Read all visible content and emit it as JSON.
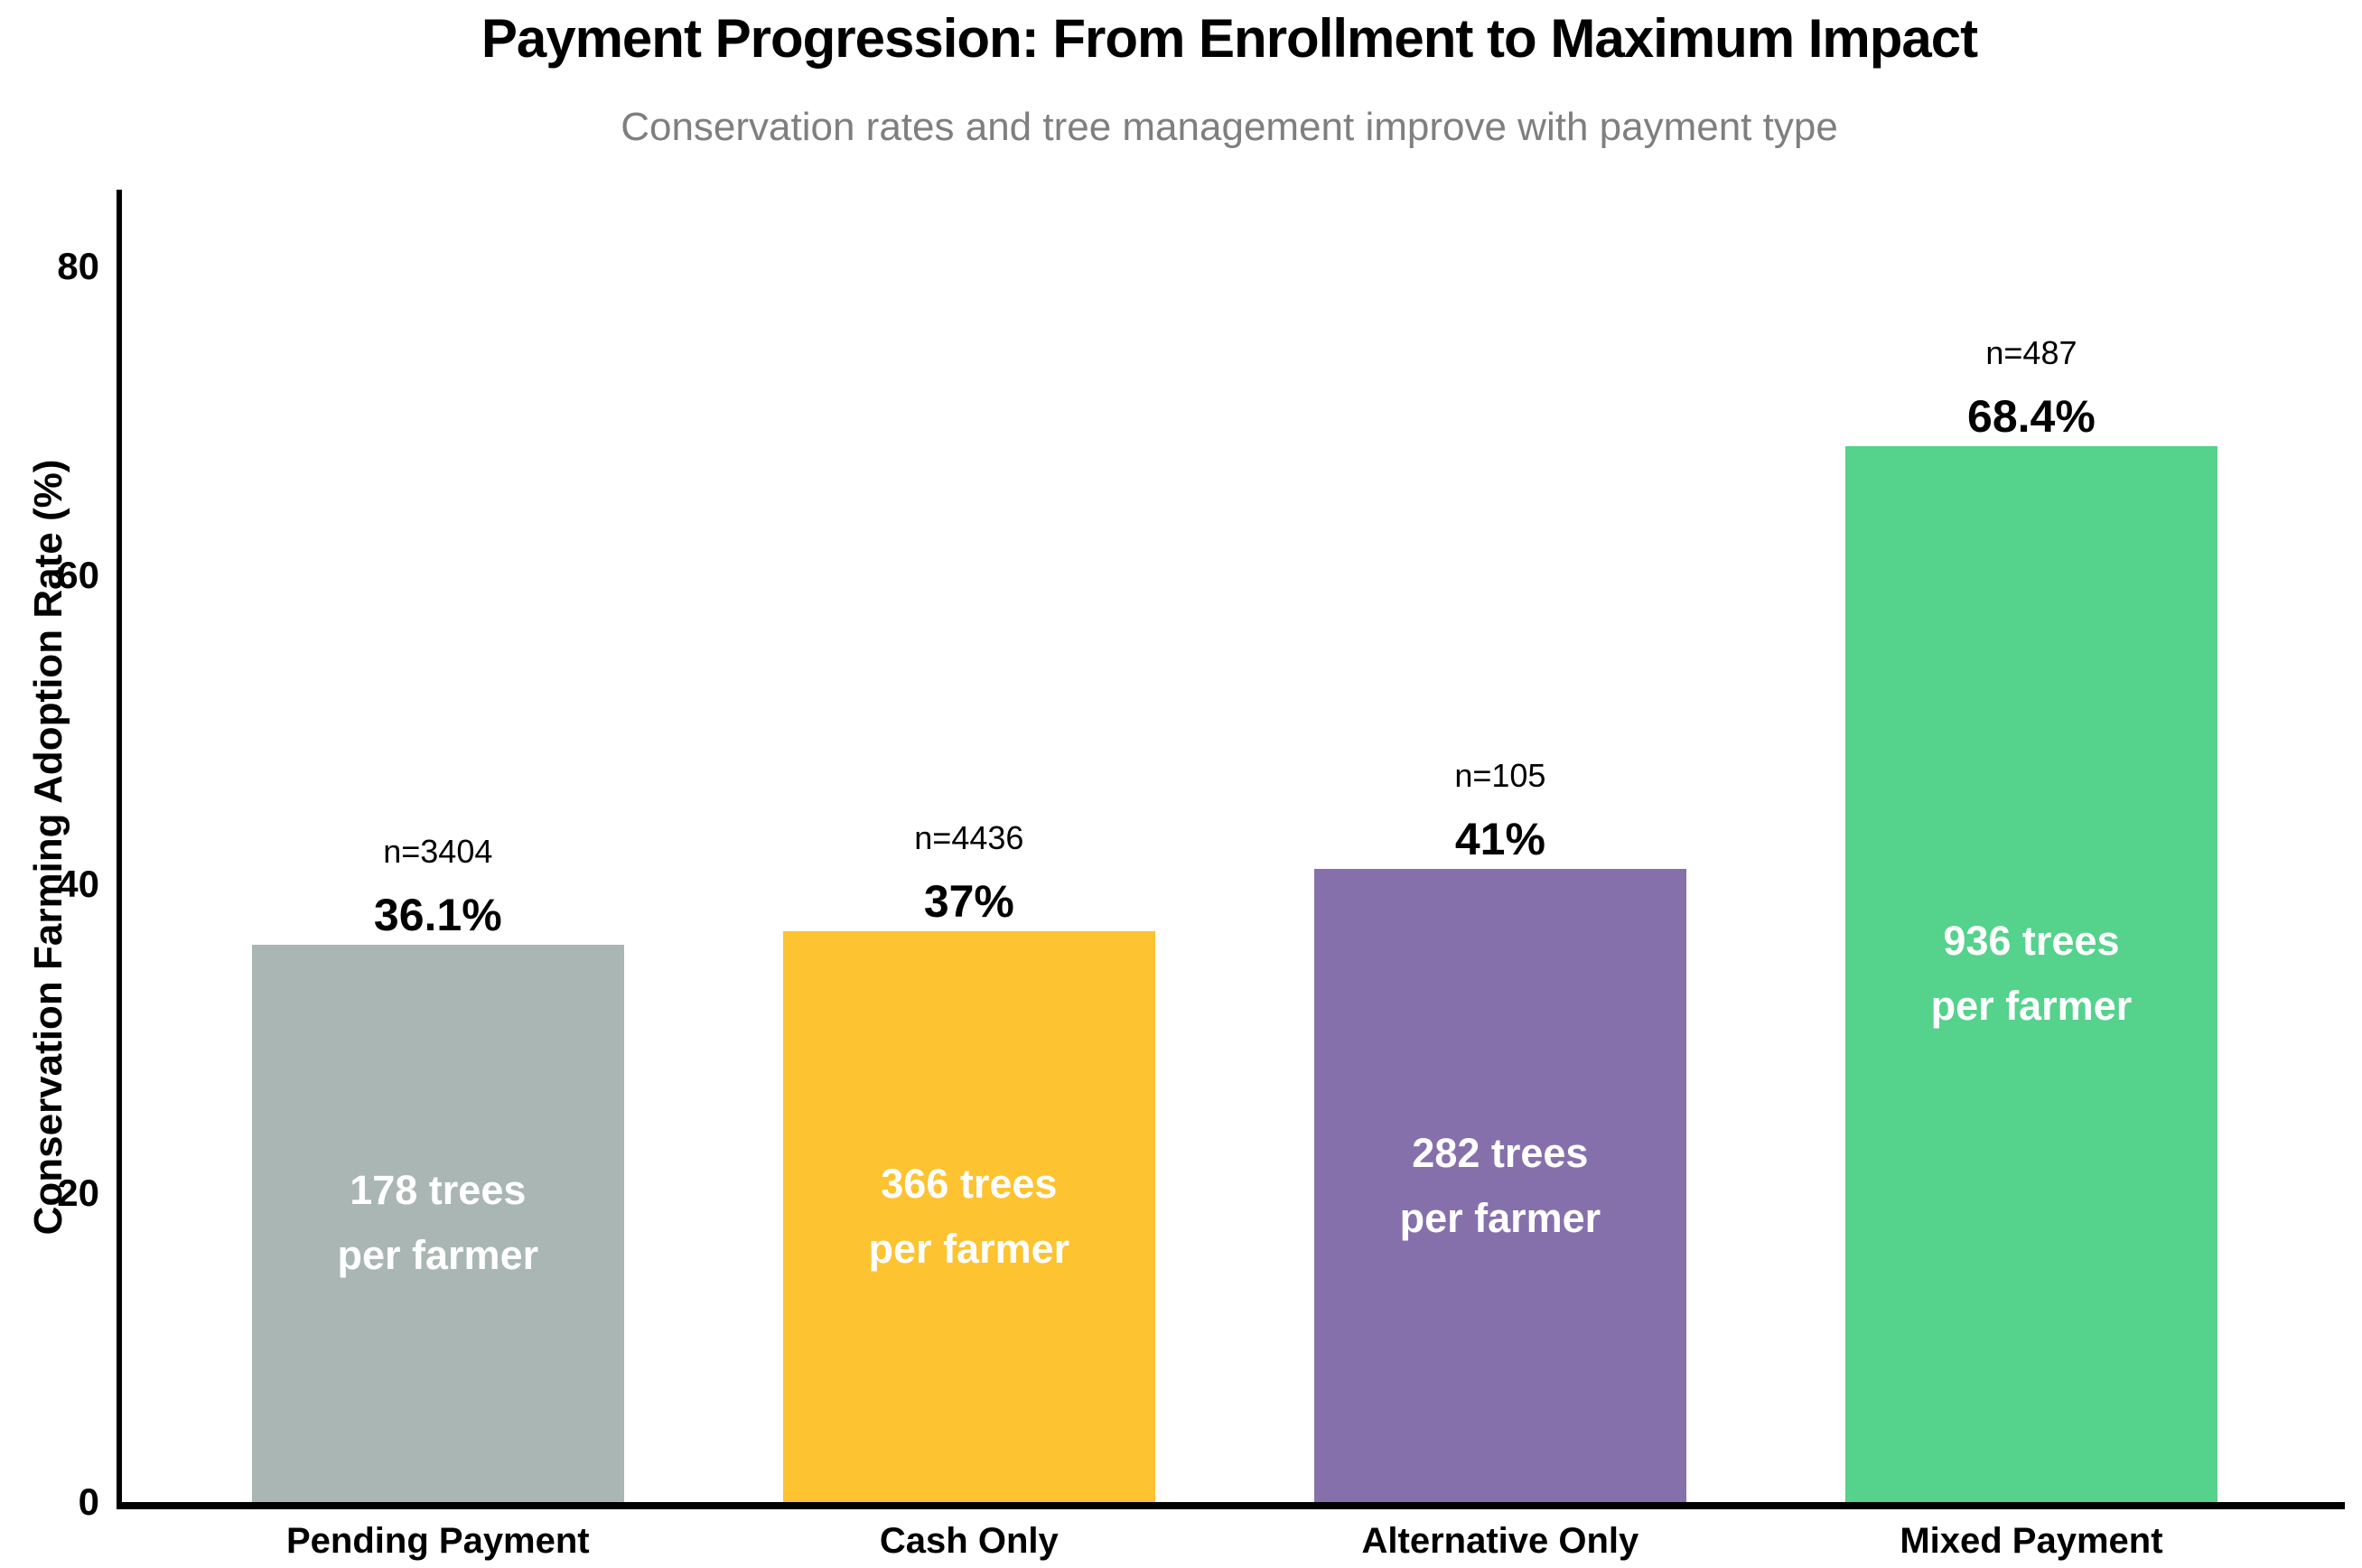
{
  "chart_data": {
    "type": "bar",
    "title": "Payment Progression: From Enrollment to Maximum Impact",
    "subtitle": "Conservation rates and tree management improve with payment type",
    "xlabel": "",
    "ylabel": "Conservation Farming Adoption Rate (%)",
    "categories": [
      "Pending Payment",
      "Cash Only",
      "Alternative Only",
      "Mixed Payment"
    ],
    "values": [
      36.1,
      37.0,
      41.0,
      68.4
    ],
    "value_labels": [
      "36.1%",
      "37%",
      "41%",
      "68.4%"
    ],
    "n_values": [
      3404,
      4436,
      105,
      487
    ],
    "n_labels": [
      "n=3404",
      "n=4436",
      "n=105",
      "n=487"
    ],
    "trees_per_farmer": [
      178,
      366,
      282,
      936
    ],
    "bar_inner_labels": [
      [
        "178 trees",
        "per farmer"
      ],
      [
        "366 trees",
        "per farmer"
      ],
      [
        "282 trees",
        "per farmer"
      ],
      [
        "936 trees",
        "per farmer"
      ]
    ],
    "bar_colors": [
      "#aab6b4",
      "#fdc330",
      "#8670ac",
      "#55d28c"
    ],
    "ylim": [
      0,
      85
    ],
    "yticks": [
      0,
      20,
      40,
      60,
      80
    ],
    "grid": false,
    "legend": null,
    "text_colors": {
      "title": "#000000",
      "subtitle": "#7f7f7f",
      "bar_inner_text": "#ffffff",
      "axis_text": "#000000"
    }
  }
}
